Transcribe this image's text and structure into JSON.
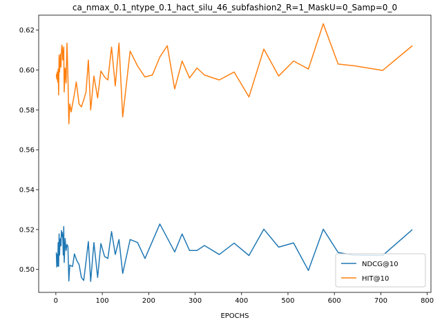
{
  "chart_data": {
    "type": "line",
    "title": "ca_nmax_0.1_ntype_0.1_hact_silu_46_subfashion2_R=1_MaskU=0_Samp=0_0",
    "xlabel": "EPOCHS",
    "ylabel": "",
    "xlim": [
      -37,
      808
    ],
    "ylim": [
      0.4885,
      0.6275
    ],
    "xticks": [
      0,
      100,
      200,
      300,
      400,
      500,
      600,
      700,
      800
    ],
    "yticks": [
      0.5,
      0.52,
      0.54,
      0.56,
      0.58,
      0.6,
      0.62
    ],
    "grid": false,
    "legend_position": "lower-right",
    "series": [
      {
        "name": "NDCG@10",
        "color": "#1f77b4",
        "points": [
          [
            1,
            0.5085
          ],
          [
            2,
            0.5012
          ],
          [
            3,
            0.5075
          ],
          [
            4,
            0.5018
          ],
          [
            5,
            0.5135
          ],
          [
            6,
            0.5015
          ],
          [
            7,
            0.5178
          ],
          [
            8,
            0.5072
          ],
          [
            9,
            0.5142
          ],
          [
            10,
            0.5155
          ],
          [
            11,
            0.5118
          ],
          [
            12,
            0.5195
          ],
          [
            13,
            0.5165
          ],
          [
            14,
            0.5185
          ],
          [
            15,
            0.5155
          ],
          [
            16,
            0.5072
          ],
          [
            17,
            0.5215
          ],
          [
            18,
            0.5035
          ],
          [
            20,
            0.5155
          ],
          [
            22,
            0.5095
          ],
          [
            24,
            0.5125
          ],
          [
            26,
            0.5115
          ],
          [
            28,
            0.4942
          ],
          [
            30,
            0.5022
          ],
          [
            33,
            0.5018
          ],
          [
            36,
            0.5015
          ],
          [
            40,
            0.5078
          ],
          [
            45,
            0.5045
          ],
          [
            50,
            0.5025
          ],
          [
            55,
            0.496
          ],
          [
            60,
            0.4945
          ],
          [
            65,
            0.504
          ],
          [
            70,
            0.514
          ],
          [
            75,
            0.494
          ],
          [
            82,
            0.5135
          ],
          [
            90,
            0.496
          ],
          [
            97,
            0.513
          ],
          [
            105,
            0.5065
          ],
          [
            112,
            0.5055
          ],
          [
            120,
            0.519
          ],
          [
            128,
            0.5075
          ],
          [
            136,
            0.515
          ],
          [
            144,
            0.498
          ],
          [
            160,
            0.515
          ],
          [
            176,
            0.5135
          ],
          [
            192,
            0.5055
          ],
          [
            224,
            0.5228
          ],
          [
            256,
            0.5088
          ],
          [
            272,
            0.5178
          ],
          [
            288,
            0.5095
          ],
          [
            304,
            0.5095
          ],
          [
            320,
            0.512
          ],
          [
            352,
            0.5075
          ],
          [
            384,
            0.5132
          ],
          [
            416,
            0.507
          ],
          [
            448,
            0.5202
          ],
          [
            480,
            0.5112
          ],
          [
            512,
            0.5133
          ],
          [
            544,
            0.4995
          ],
          [
            576,
            0.5202
          ],
          [
            608,
            0.5085
          ],
          [
            640,
            0.5072
          ],
          [
            704,
            0.507
          ],
          [
            768,
            0.52
          ]
        ]
      },
      {
        "name": "HIT@10",
        "color": "#ff7f0e",
        "points": [
          [
            1,
            0.598
          ],
          [
            2,
            0.5955
          ],
          [
            3,
            0.599
          ],
          [
            4,
            0.594
          ],
          [
            5,
            0.6005
          ],
          [
            6,
            0.5875
          ],
          [
            7,
            0.6075
          ],
          [
            8,
            0.599
          ],
          [
            9,
            0.603
          ],
          [
            10,
            0.608
          ],
          [
            11,
            0.6015
          ],
          [
            12,
            0.609
          ],
          [
            13,
            0.6125
          ],
          [
            14,
            0.611
          ],
          [
            15,
            0.605
          ],
          [
            16,
            0.608
          ],
          [
            17,
            0.6115
          ],
          [
            18,
            0.589
          ],
          [
            20,
            0.601
          ],
          [
            22,
            0.5935
          ],
          [
            24,
            0.6135
          ],
          [
            26,
            0.597
          ],
          [
            28,
            0.573
          ],
          [
            30,
            0.583
          ],
          [
            33,
            0.579
          ],
          [
            36,
            0.583
          ],
          [
            40,
            0.588
          ],
          [
            44,
            0.594
          ],
          [
            50,
            0.583
          ],
          [
            55,
            0.5815
          ],
          [
            60,
            0.585
          ],
          [
            65,
            0.589
          ],
          [
            70,
            0.605
          ],
          [
            75,
            0.58
          ],
          [
            82,
            0.597
          ],
          [
            90,
            0.586
          ],
          [
            97,
            0.5995
          ],
          [
            105,
            0.5965
          ],
          [
            112,
            0.595
          ],
          [
            120,
            0.6115
          ],
          [
            128,
            0.592
          ],
          [
            136,
            0.6135
          ],
          [
            144,
            0.5765
          ],
          [
            160,
            0.6095
          ],
          [
            176,
            0.602
          ],
          [
            192,
            0.5965
          ],
          [
            208,
            0.5975
          ],
          [
            224,
            0.6065
          ],
          [
            240,
            0.6122
          ],
          [
            256,
            0.5905
          ],
          [
            272,
            0.6045
          ],
          [
            288,
            0.596
          ],
          [
            304,
            0.601
          ],
          [
            320,
            0.5975
          ],
          [
            352,
            0.595
          ],
          [
            384,
            0.599
          ],
          [
            416,
            0.5865
          ],
          [
            448,
            0.6105
          ],
          [
            480,
            0.597
          ],
          [
            512,
            0.6045
          ],
          [
            544,
            0.6005
          ],
          [
            576,
            0.6232
          ],
          [
            608,
            0.603
          ],
          [
            640,
            0.6022
          ],
          [
            704,
            0.5998
          ],
          [
            768,
            0.6122
          ]
        ]
      }
    ]
  }
}
